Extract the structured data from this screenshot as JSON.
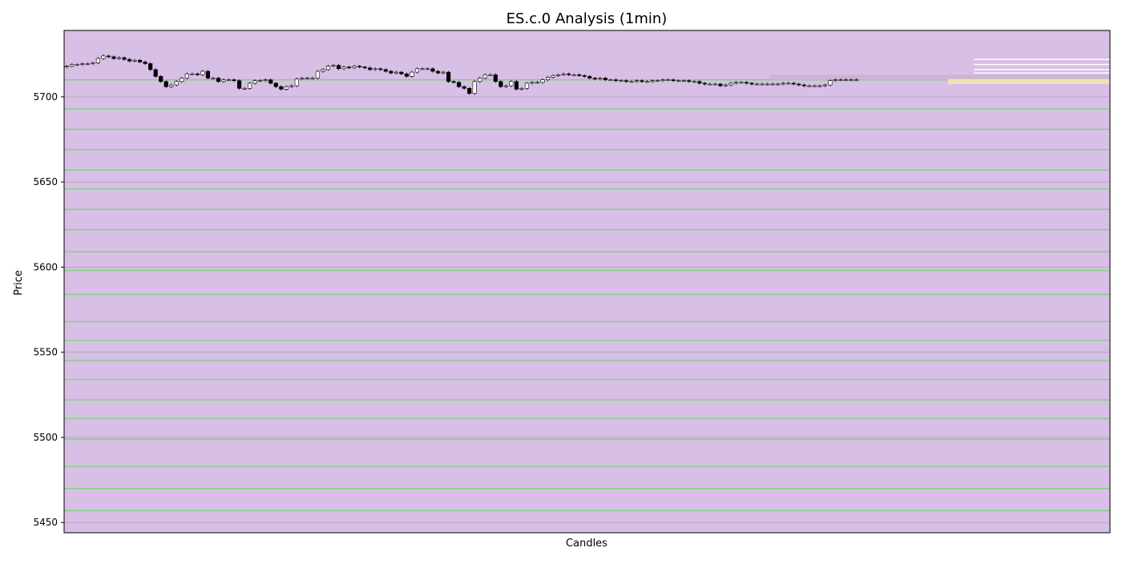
{
  "chart_data": {
    "type": "candlestick",
    "title": "ES.c.0 Analysis (1min)",
    "xlabel": "Candles",
    "ylabel": "Price",
    "ylim": [
      5444,
      5739
    ],
    "y_ticks": [
      5450,
      5500,
      5550,
      5600,
      5650,
      5700
    ],
    "x_ticks": [],
    "grid": "horizontal",
    "colors": {
      "background": "#d8bfe6",
      "grid": "#b0a0b8",
      "levels": "#7fd17f",
      "candle_up": "#ffffff",
      "candle_down": "#000000",
      "zone_gray": "#c7b5d0",
      "zone_yellow": "#f3e5b0",
      "white_levels": "#ffffff"
    },
    "horizontal_levels": [
      5710,
      5693,
      5681,
      5669,
      5657,
      5646,
      5634,
      5622,
      5609,
      5598,
      5584,
      5568,
      5557,
      5545,
      5534,
      5522,
      5511,
      5499,
      5483,
      5470,
      5457
    ],
    "white_levels": [
      5722,
      5719,
      5716,
      5714
    ],
    "zones": [
      {
        "x0": 135,
        "x1": 200,
        "y0": 5710,
        "y1": 5713,
        "color": "gray"
      },
      {
        "x0": 169,
        "x1": 200,
        "y0": 5707.5,
        "y1": 5710.5,
        "color": "yellow"
      }
    ],
    "close": [
      5718.0,
      5719.0,
      5719.0,
      5719.5,
      5719.5,
      5720.0,
      5722.5,
      5724.0,
      5723.5,
      5722.5,
      5723.0,
      5722.0,
      5721.0,
      5721.5,
      5720.5,
      5719.5,
      5716.0,
      5712.0,
      5709.0,
      5706.0,
      5707.0,
      5709.0,
      5711.0,
      5713.5,
      5713.5,
      5713.0,
      5715.0,
      5711.0,
      5711.0,
      5709.0,
      5710.0,
      5710.0,
      5709.5,
      5705.0,
      5705.0,
      5708.0,
      5709.5,
      5709.5,
      5710.0,
      5708.0,
      5706.0,
      5704.5,
      5706.0,
      5706.5,
      5710.5,
      5711.0,
      5711.0,
      5711.0,
      5715.0,
      5716.0,
      5718.0,
      5718.5,
      5716.5,
      5717.5,
      5717.0,
      5718.0,
      5717.5,
      5717.0,
      5716.0,
      5716.5,
      5716.0,
      5715.0,
      5714.0,
      5714.5,
      5713.5,
      5712.0,
      5714.5,
      5716.5,
      5716.5,
      5716.5,
      5715.0,
      5714.0,
      5714.5,
      5709.0,
      5708.5,
      5706.0,
      5705.0,
      5702.0,
      5709.0,
      5711.0,
      5713.0,
      5713.0,
      5709.0,
      5706.0,
      5706.5,
      5709.0,
      5704.5,
      5705.0,
      5708.0,
      5708.5,
      5708.5,
      5710.0,
      5711.5,
      5712.5,
      5713.0,
      5713.5,
      5713.0,
      5713.0,
      5712.5,
      5712.0,
      5711.0,
      5710.5,
      5711.0,
      5710.0,
      5710.0,
      5709.5,
      5709.5,
      5709.0,
      5709.0,
      5709.5,
      5709.0,
      5709.0,
      5709.5,
      5709.5,
      5710.0,
      5710.0,
      5709.5,
      5709.5,
      5709.5,
      5709.0,
      5709.0,
      5708.0,
      5707.5,
      5707.5,
      5707.5,
      5706.5,
      5707.0,
      5708.0,
      5708.5,
      5708.5,
      5708.0,
      5707.5,
      5707.5,
      5707.5,
      5707.5,
      5707.5,
      5707.5,
      5708.0,
      5708.0,
      5707.5,
      5707.0,
      5706.5,
      5706.5,
      5706.5,
      5706.5,
      5707.0,
      5709.5,
      5710.0,
      5710.0,
      5710.0,
      5710.0,
      5710.0
    ]
  }
}
